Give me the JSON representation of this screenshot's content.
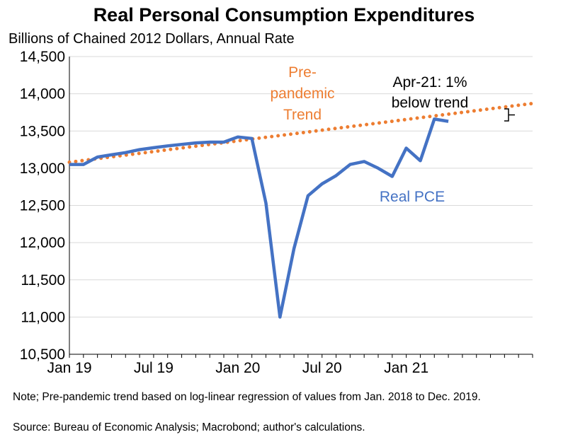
{
  "chart_data": {
    "type": "line",
    "title": "Real Personal Consumption Expenditures",
    "subtitle": "Billions of Chained 2012 Dollars, Annual Rate",
    "ylim": [
      10500,
      14500
    ],
    "yticks": [
      "10,500",
      "11,000",
      "11,500",
      "12,000",
      "12,500",
      "13,000",
      "13,500",
      "14,000",
      "14,500"
    ],
    "ytick_values": [
      10500,
      11000,
      11500,
      12000,
      12500,
      13000,
      13500,
      14000,
      14500
    ],
    "xlim": [
      "2019-01",
      "2021-10"
    ],
    "xticks": [
      {
        "label": "Jan 19",
        "month": "2019-01"
      },
      {
        "label": "Jul 19",
        "month": "2019-07"
      },
      {
        "label": "Jan 20",
        "month": "2020-01"
      },
      {
        "label": "Jul 20",
        "month": "2020-07"
      },
      {
        "label": "Jan 21",
        "month": "2021-01"
      }
    ],
    "grid": "horizontal",
    "series": [
      {
        "name": "Real PCE",
        "color": "#4472C4",
        "style": "solid",
        "x": [
          "2019-01",
          "2019-02",
          "2019-03",
          "2019-04",
          "2019-05",
          "2019-06",
          "2019-07",
          "2019-08",
          "2019-09",
          "2019-10",
          "2019-11",
          "2019-12",
          "2020-01",
          "2020-02",
          "2020-03",
          "2020-04",
          "2020-05",
          "2020-06",
          "2020-07",
          "2020-08",
          "2020-09",
          "2020-10",
          "2020-11",
          "2020-12",
          "2021-01",
          "2021-02",
          "2021-03",
          "2021-04"
        ],
        "y": [
          13050,
          13050,
          13150,
          13180,
          13210,
          13250,
          13275,
          13300,
          13320,
          13340,
          13350,
          13350,
          13420,
          13400,
          12530,
          11000,
          11920,
          12630,
          12790,
          12900,
          13050,
          13090,
          13000,
          12890,
          13270,
          13100,
          13660,
          13630
        ]
      },
      {
        "name": "Pre-pandemic Trend",
        "color": "#ED7D31",
        "style": "dotted",
        "x": [
          "2019-01",
          "2021-10"
        ],
        "y": [
          13080,
          13870
        ]
      }
    ],
    "annotations": [
      {
        "text_lines": [
          "Pre-",
          "pandemic",
          "Trend"
        ],
        "color": "#ED7D31"
      },
      {
        "text_lines": [
          "Apr-21: 1%",
          "below trend"
        ],
        "color": "#000000"
      },
      {
        "text": "Real PCE",
        "color": "#4472C4"
      }
    ]
  },
  "note": "Note; Pre-pandemic trend based on log-linear regression of values from Jan. 2018 to Dec. 2019.",
  "source": "Source: Bureau of Economic Analysis; Macrobond; author's calculations."
}
